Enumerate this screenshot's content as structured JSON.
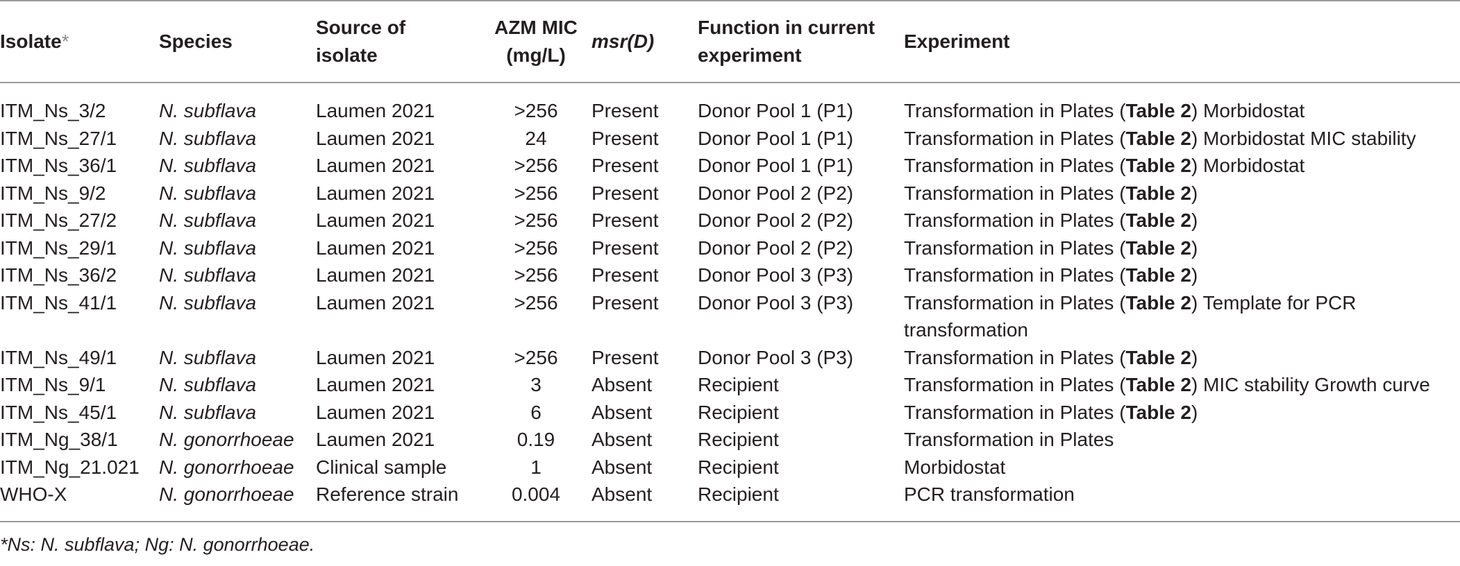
{
  "headers": {
    "isolate": "Isolate",
    "isolate_mark": "*",
    "species": "Species",
    "source": "Source of isolate",
    "azm": "AZM MIC (mg/L)",
    "msr": "msr(D)",
    "function": "Function in current experiment",
    "experiment": "Experiment"
  },
  "rows": [
    {
      "isolate": "ITM_Ns_3/2",
      "species": "N. subflava",
      "source": "Laumen 2021",
      "mic": ">256",
      "msr": "Present",
      "function": "Donor Pool 1 (P1)",
      "exp_pre": "Transformation in Plates (",
      "exp_bold": "Table 2",
      "exp_post": ") Morbidostat"
    },
    {
      "isolate": "ITM_Ns_27/1",
      "species": "N. subflava",
      "source": "Laumen 2021",
      "mic": "24",
      "msr": "Present",
      "function": "Donor Pool 1 (P1)",
      "exp_pre": "Transformation in Plates (",
      "exp_bold": "Table 2",
      "exp_post": ") Morbidostat MIC stability"
    },
    {
      "isolate": "ITM_Ns_36/1",
      "species": "N. subflava",
      "source": "Laumen 2021",
      "mic": ">256",
      "msr": "Present",
      "function": "Donor Pool 1 (P1)",
      "exp_pre": "Transformation in Plates (",
      "exp_bold": "Table 2",
      "exp_post": ") Morbidostat"
    },
    {
      "isolate": "ITM_Ns_9/2",
      "species": "N. subflava",
      "source": "Laumen 2021",
      "mic": ">256",
      "msr": "Present",
      "function": "Donor Pool 2 (P2)",
      "exp_pre": "Transformation in Plates (",
      "exp_bold": "Table 2",
      "exp_post": ")"
    },
    {
      "isolate": "ITM_Ns_27/2",
      "species": "N. subflava",
      "source": "Laumen 2021",
      "mic": ">256",
      "msr": "Present",
      "function": "Donor Pool 2 (P2)",
      "exp_pre": "Transformation in Plates (",
      "exp_bold": "Table 2",
      "exp_post": ")"
    },
    {
      "isolate": "ITM_Ns_29/1",
      "species": "N. subflava",
      "source": "Laumen 2021",
      "mic": ">256",
      "msr": "Present",
      "function": "Donor Pool 2 (P2)",
      "exp_pre": "Transformation in Plates (",
      "exp_bold": "Table 2",
      "exp_post": ")"
    },
    {
      "isolate": "ITM_Ns_36/2",
      "species": "N. subflava",
      "source": "Laumen 2021",
      "mic": ">256",
      "msr": "Present",
      "function": "Donor Pool 3 (P3)",
      "exp_pre": "Transformation in Plates (",
      "exp_bold": "Table 2",
      "exp_post": ")"
    },
    {
      "isolate": "ITM_Ns_41/1",
      "species": "N. subflava",
      "source": "Laumen 2021",
      "mic": ">256",
      "msr": "Present",
      "function": "Donor Pool 3 (P3)",
      "exp_pre": "Transformation in Plates (",
      "exp_bold": "Table 2",
      "exp_post": ") Template for PCR transformation"
    },
    {
      "isolate": "ITM_Ns_49/1",
      "species": "N. subflava",
      "source": "Laumen 2021",
      "mic": ">256",
      "msr": "Present",
      "function": "Donor Pool 3 (P3)",
      "exp_pre": "Transformation in Plates (",
      "exp_bold": "Table 2",
      "exp_post": ")"
    },
    {
      "isolate": "ITM_Ns_9/1",
      "species": "N. subflava",
      "source": "Laumen 2021",
      "mic": "3",
      "msr": "Absent",
      "function": "Recipient",
      "exp_pre": "Transformation in Plates (",
      "exp_bold": "Table 2",
      "exp_post": ") MIC stability Growth curve"
    },
    {
      "isolate": "ITM_Ns_45/1",
      "species": "N. subflava",
      "source": "Laumen 2021",
      "mic": "6",
      "msr": "Absent",
      "function": "Recipient",
      "exp_pre": "Transformation in Plates (",
      "exp_bold": "Table 2",
      "exp_post": ")"
    },
    {
      "isolate": "ITM_Ng_38/1",
      "species": "N. gonorrhoeae",
      "source": "Laumen 2021",
      "mic": "0.19",
      "msr": "Absent",
      "function": "Recipient",
      "exp_pre": "Transformation in Plates",
      "exp_bold": "",
      "exp_post": ""
    },
    {
      "isolate": "ITM_Ng_21.021",
      "species": "N. gonorrhoeae",
      "source": "Clinical sample",
      "mic": "1",
      "msr": "Absent",
      "function": "Recipient",
      "exp_pre": "Morbidostat",
      "exp_bold": "",
      "exp_post": ""
    },
    {
      "isolate": "WHO-X",
      "species": "N. gonorrhoeae",
      "source": "Reference strain",
      "mic": "0.004",
      "msr": "Absent",
      "function": "Recipient",
      "exp_pre": "PCR transformation",
      "exp_bold": "",
      "exp_post": ""
    }
  ],
  "footnote": "*Ns: N. subflava; Ng: N. gonorrhoeae."
}
